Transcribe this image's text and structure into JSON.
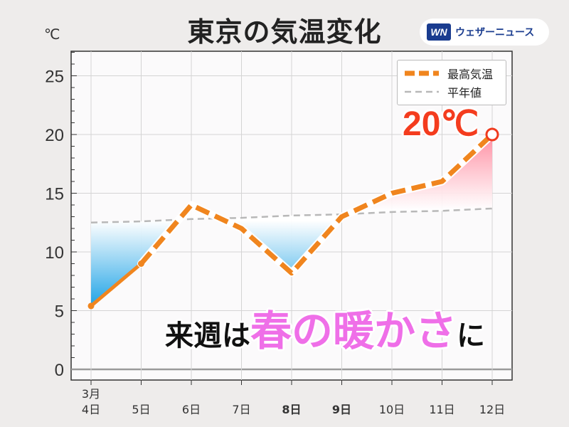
{
  "title": "東京の気温変化",
  "unit": "℃",
  "logo": {
    "mark": "WN",
    "text": "ウェザーニュース"
  },
  "legend": {
    "max_temp": "最高気温",
    "normal": "平年値"
  },
  "annotation": {
    "part1": "来週は",
    "highlight": "春の暖かさ",
    "part2": "に"
  },
  "callout": "20℃",
  "colors": {
    "max": "#f0851e",
    "normal": "#b8b8b8",
    "warm": "#ff8fa3",
    "cold": "#2aa8e8",
    "sat": "#1f6fe0",
    "sun": "#f03a1e",
    "highlight": "#ef6fe8"
  },
  "chart_data": {
    "type": "line",
    "categories": [
      "4日",
      "5日",
      "6日",
      "7日",
      "8日",
      "9日",
      "10日",
      "11日",
      "12日"
    ],
    "month_label": "3月",
    "weekend": {
      "sat_index": 4,
      "sun_index": 5
    },
    "ylim": [
      0,
      27
    ],
    "yticks": [
      0,
      5,
      10,
      15,
      20,
      25
    ],
    "grid": true,
    "legend_position": "top-right",
    "series": [
      {
        "name": "最高気温",
        "values": [
          5.4,
          9.0,
          14.0,
          12.0,
          8.2,
          13.0,
          15.0,
          16.0,
          20.0
        ],
        "style": "solid-then-dashed",
        "solid_until_index": 1
      },
      {
        "name": "平年値",
        "values": [
          12.5,
          12.6,
          12.8,
          12.9,
          13.1,
          13.2,
          13.4,
          13.5,
          13.7
        ],
        "style": "dashed"
      }
    ]
  }
}
